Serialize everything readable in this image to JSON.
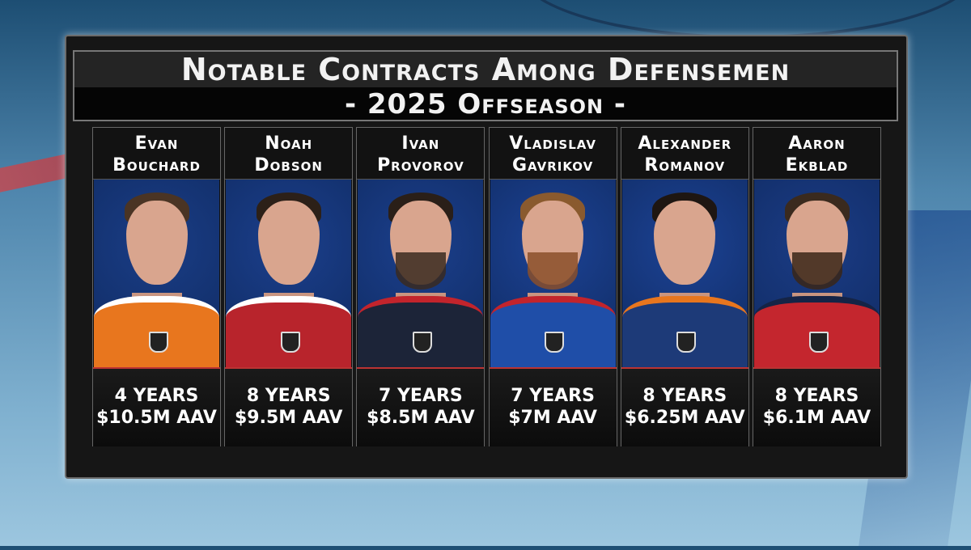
{
  "title": {
    "line1": "Notable Contracts Among Defensemen",
    "line2": "- 2025 Offseason -"
  },
  "players": [
    {
      "first": "Evan",
      "last": "Bouchard",
      "years": "4 YEARS",
      "aav": "$10.5M AAV",
      "bg": "#1a3d86",
      "jersey": "#e8761e",
      "trim": "#ffffff",
      "hair": "#4a3424",
      "beard": ""
    },
    {
      "first": "Noah",
      "last": "Dobson",
      "years": "8 YEARS",
      "aav": "$9.5M AAV",
      "bg": "#1b3f8c",
      "jersey": "#b8242c",
      "trim": "#ffffff",
      "hair": "#2c2018",
      "beard": ""
    },
    {
      "first": "Ivan",
      "last": "Provorov",
      "years": "7 YEARS",
      "aav": "$8.5M AAV",
      "bg": "#1b3f8c",
      "jersey": "#1c2438",
      "trim": "#c2242c",
      "hair": "#2a1f18",
      "beard": "#3a2a20"
    },
    {
      "first": "Vladislav",
      "last": "Gavrikov",
      "years": "7 YEARS",
      "aav": "$7M AAV",
      "bg": "#1c4294",
      "jersey": "#1f4ea8",
      "trim": "#c2242c",
      "hair": "#8a5a2e",
      "beard": "#8a4f2a"
    },
    {
      "first": "Alexander",
      "last": "Romanov",
      "years": "8 YEARS",
      "aav": "$6.25M AAV",
      "bg": "#1c4294",
      "jersey": "#1d3a78",
      "trim": "#e8761e",
      "hair": "#1e1612",
      "beard": ""
    },
    {
      "first": "Aaron",
      "last": "Ekblad",
      "years": "8 YEARS",
      "aav": "$6.1M AAV",
      "bg": "#1b3c86",
      "jersey": "#c4262e",
      "trim": "#152446",
      "hair": "#3a2a1e",
      "beard": "#3a2618"
    }
  ]
}
